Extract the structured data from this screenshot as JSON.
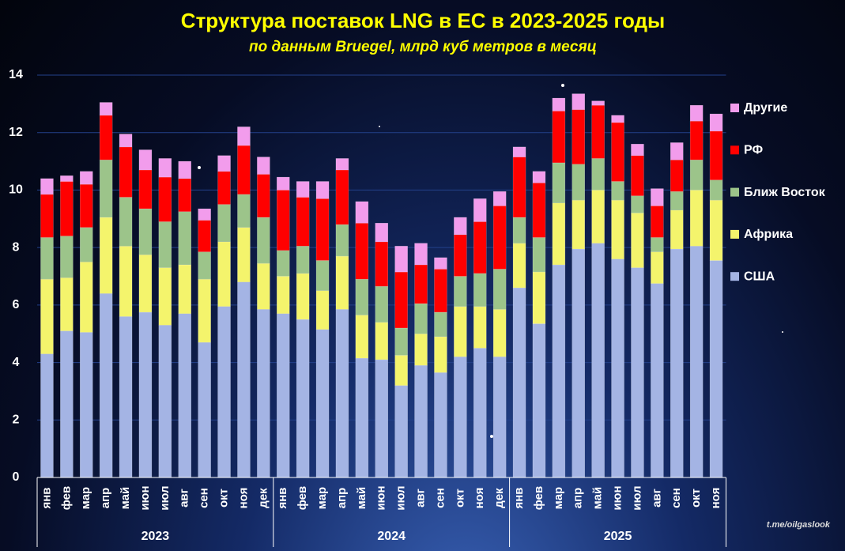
{
  "chart_data": {
    "type": "stacked_bar",
    "title": "Структура  поставок  LNG в ЕС в 2023-2025 годы",
    "subtitle": "по данным  Bruegel,  млрд куб метров в месяц",
    "watermark": "t.me/oilgaslook",
    "categories": [
      "янв",
      "фев",
      "мар",
      "апр",
      "май",
      "июн",
      "июл",
      "авг",
      "сен",
      "окт",
      "ноя",
      "дек",
      "янв",
      "фев",
      "мар",
      "апр",
      "май",
      "июн",
      "июл",
      "авг",
      "сен",
      "окт",
      "ноя",
      "дек",
      "янв",
      "фев",
      "мар",
      "апр",
      "май",
      "июн",
      "июл",
      "авг",
      "сен",
      "окт",
      "ноя"
    ],
    "groups": [
      "2023",
      "2024",
      "2025"
    ],
    "series": [
      {
        "name": "США",
        "color": "#a4b4e4",
        "values": [
          4.3,
          5.1,
          5.05,
          6.4,
          5.6,
          5.75,
          5.3,
          5.7,
          4.7,
          5.95,
          6.8,
          5.85,
          5.7,
          5.5,
          5.15,
          5.85,
          4.15,
          4.1,
          3.2,
          3.9,
          3.65,
          4.2,
          4.5,
          4.2,
          6.6,
          5.35,
          7.4,
          7.95,
          8.15,
          7.6,
          7.3,
          6.75,
          7.95,
          8.05,
          7.55
        ]
      },
      {
        "name": "Африка",
        "color": "#f4f46c",
        "values": [
          2.6,
          1.85,
          2.45,
          2.65,
          2.45,
          2.0,
          2.0,
          1.7,
          2.2,
          2.25,
          1.9,
          1.6,
          1.3,
          1.6,
          1.35,
          1.85,
          1.5,
          1.3,
          1.05,
          1.1,
          1.25,
          1.75,
          1.45,
          1.65,
          1.55,
          1.8,
          2.15,
          1.7,
          1.85,
          2.05,
          1.9,
          1.1,
          1.35,
          1.95,
          2.1
        ]
      },
      {
        "name": "Ближ Восток",
        "color": "#9cc48a",
        "values": [
          1.45,
          1.45,
          1.2,
          2.0,
          1.7,
          1.6,
          1.6,
          1.85,
          0.95,
          1.3,
          1.15,
          1.6,
          0.9,
          0.95,
          1.05,
          1.1,
          1.25,
          1.25,
          0.95,
          1.05,
          0.85,
          1.05,
          1.15,
          1.4,
          0.9,
          1.2,
          1.4,
          1.25,
          1.1,
          0.65,
          0.6,
          0.5,
          0.65,
          1.05,
          0.7
        ]
      },
      {
        "name": "РФ",
        "color": "#ff0000",
        "values": [
          1.5,
          1.9,
          1.5,
          1.55,
          1.75,
          1.35,
          1.55,
          1.15,
          1.1,
          1.15,
          1.7,
          1.5,
          2.1,
          1.7,
          2.15,
          1.9,
          1.95,
          1.55,
          1.95,
          1.35,
          1.5,
          1.45,
          1.8,
          2.2,
          2.1,
          1.9,
          1.8,
          1.9,
          1.85,
          2.05,
          1.4,
          1.1,
          1.1,
          1.35,
          1.7
        ]
      },
      {
        "name": "Другие",
        "color": "#f29cec",
        "values": [
          0.55,
          0.2,
          0.45,
          0.45,
          0.45,
          0.7,
          0.65,
          0.6,
          0.4,
          0.55,
          0.65,
          0.6,
          0.45,
          0.55,
          0.6,
          0.4,
          0.75,
          0.65,
          0.9,
          0.75,
          0.4,
          0.6,
          0.8,
          0.5,
          0.35,
          0.4,
          0.45,
          0.55,
          0.15,
          0.25,
          0.4,
          0.6,
          0.6,
          0.55,
          0.6
        ]
      }
    ],
    "ylim": [
      0,
      14
    ],
    "yticks": [
      0,
      2,
      4,
      6,
      8,
      10,
      12,
      14
    ],
    "grid": true,
    "legend": "right"
  }
}
